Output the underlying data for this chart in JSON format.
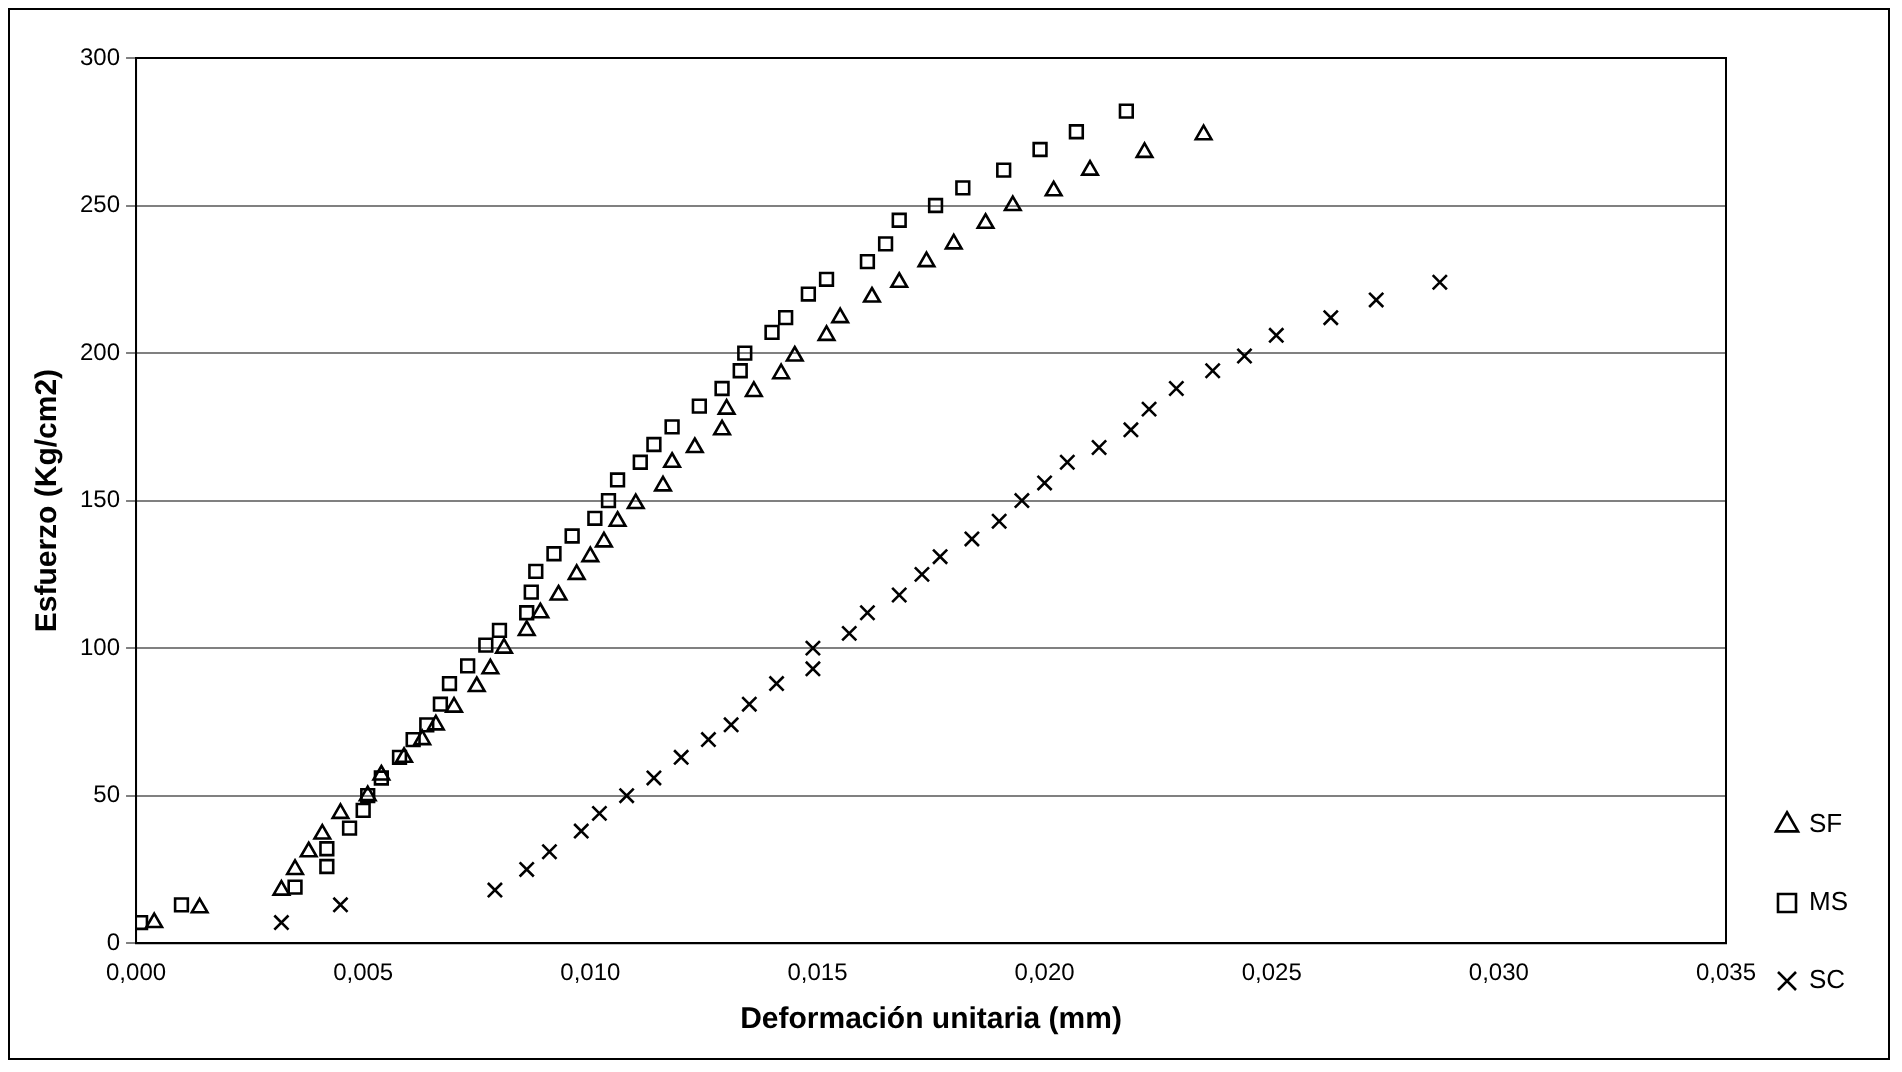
{
  "chart_data": {
    "type": "scatter",
    "xlabel": "Deformación unitaria (mm)",
    "ylabel": "Esfuerzo (Kg/cm2)",
    "xlim": [
      0,
      0.035
    ],
    "xticks": [
      {
        "value": 0,
        "label": "0,000"
      },
      {
        "value": 0.005,
        "label": "0,005"
      },
      {
        "value": 0.01,
        "label": "0,010"
      },
      {
        "value": 0.015,
        "label": "0,015"
      },
      {
        "value": 0.02,
        "label": "0,020"
      },
      {
        "value": 0.025,
        "label": "0,025"
      },
      {
        "value": 0.03,
        "label": "0,030"
      },
      {
        "value": 0.035,
        "label": "0,035"
      }
    ],
    "ylim": [
      0,
      300
    ],
    "yticks": [
      0,
      50,
      100,
      150,
      200,
      250,
      300
    ],
    "grid": "y",
    "legend": "right",
    "series": [
      {
        "name": "SF",
        "color": "#000000",
        "marker": "triangle",
        "x": [
          0.0004,
          0.0014,
          0.0032,
          0.0035,
          0.0038,
          0.0041,
          0.0045,
          0.0051,
          0.0054,
          0.0059,
          0.0063,
          0.0066,
          0.007,
          0.0075,
          0.0078,
          0.0081,
          0.0086,
          0.0089,
          0.0093,
          0.0097,
          0.01,
          0.0103,
          0.0106,
          0.011,
          0.0116,
          0.0118,
          0.0123,
          0.0129,
          0.013,
          0.0136,
          0.0142,
          0.0145,
          0.0152,
          0.0155,
          0.0162,
          0.0168,
          0.0174,
          0.018,
          0.0187,
          0.0193,
          0.0202,
          0.021,
          0.0222,
          0.0235
        ],
        "values": [
          7,
          12,
          18,
          25,
          31,
          37,
          44,
          50,
          57,
          63,
          69,
          74,
          80,
          87,
          93,
          100,
          106,
          112,
          118,
          125,
          131,
          136,
          143,
          149,
          155,
          163,
          168,
          174,
          181,
          187,
          193,
          199,
          206,
          212,
          219,
          224,
          231,
          237,
          244,
          250,
          255,
          262,
          268,
          274
        ]
      },
      {
        "name": "MS",
        "color": "#000000",
        "marker": "square",
        "x": [
          0.0001,
          0.001,
          0.0035,
          0.0042,
          0.0042,
          0.0047,
          0.005,
          0.0051,
          0.0054,
          0.0058,
          0.0061,
          0.0064,
          0.0067,
          0.0069,
          0.0073,
          0.0077,
          0.008,
          0.0086,
          0.0087,
          0.0088,
          0.0092,
          0.0096,
          0.0101,
          0.0104,
          0.0106,
          0.0111,
          0.0114,
          0.0118,
          0.0124,
          0.0129,
          0.0133,
          0.0134,
          0.014,
          0.0143,
          0.0148,
          0.0152,
          0.0161,
          0.0165,
          0.0168,
          0.0176,
          0.0182,
          0.0191,
          0.0199,
          0.0207,
          0.0218
        ],
        "values": [
          7,
          13,
          19,
          26,
          32,
          39,
          45,
          50,
          56,
          63,
          69,
          74,
          81,
          88,
          94,
          101,
          106,
          112,
          119,
          126,
          132,
          138,
          144,
          150,
          157,
          163,
          169,
          175,
          182,
          188,
          194,
          200,
          207,
          212,
          220,
          225,
          231,
          237,
          245,
          250,
          256,
          262,
          269,
          275,
          282
        ]
      },
      {
        "name": "SC",
        "color": "#000000",
        "marker": "cross",
        "x": [
          0.0032,
          0.0045,
          0.0079,
          0.0086,
          0.0091,
          0.0098,
          0.0102,
          0.0108,
          0.0114,
          0.012,
          0.0126,
          0.0131,
          0.0135,
          0.0141,
          0.0149,
          0.0149,
          0.0157,
          0.0161,
          0.0168,
          0.0173,
          0.0177,
          0.0184,
          0.019,
          0.0195,
          0.02,
          0.0205,
          0.0212,
          0.0219,
          0.0223,
          0.0229,
          0.0237,
          0.0244,
          0.0251,
          0.0263,
          0.0273,
          0.0287
        ],
        "values": [
          7,
          13,
          18,
          25,
          31,
          38,
          44,
          50,
          56,
          63,
          69,
          74,
          81,
          88,
          93,
          100,
          105,
          112,
          118,
          125,
          131,
          137,
          143,
          150,
          156,
          163,
          168,
          174,
          181,
          188,
          194,
          199,
          206,
          212,
          218,
          224
        ]
      }
    ]
  }
}
